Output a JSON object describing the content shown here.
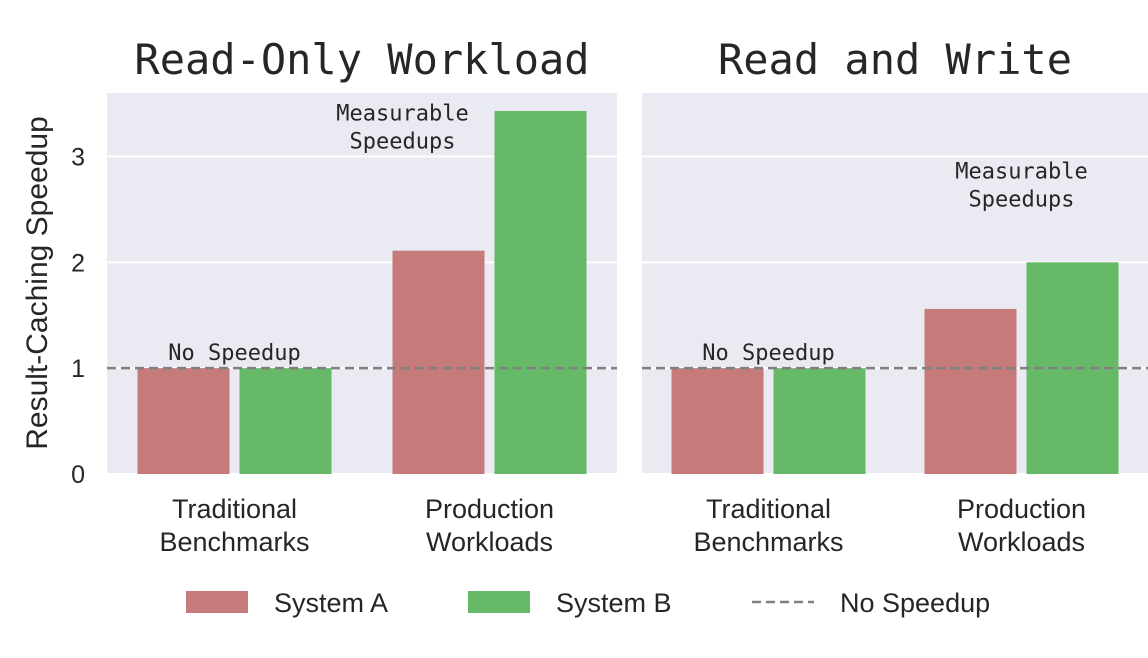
{
  "chart_data": [
    {
      "type": "bar",
      "title": "Read-Only Workload",
      "ylabel": "Result-Caching Speedup",
      "categories": [
        [
          "Traditional",
          "Benchmarks"
        ],
        [
          "Production",
          "Workloads"
        ]
      ],
      "series": [
        {
          "name": "System A",
          "values": [
            1.0,
            2.11
          ]
        },
        {
          "name": "System B",
          "values": [
            1.0,
            3.43
          ]
        }
      ],
      "yticks": [
        0,
        1,
        2,
        3
      ],
      "ylim": [
        0,
        3.6
      ],
      "reference_line": {
        "y": 1,
        "label": "No Speedup",
        "style": "dashed"
      },
      "annotations": [
        {
          "text": [
            "No Speedup"
          ],
          "category": 0,
          "y": 1.0
        },
        {
          "text": [
            "Measurable",
            "Speedups"
          ],
          "category": 1,
          "y": 3.0
        }
      ],
      "grid": true
    },
    {
      "type": "bar",
      "title": "Read and Write",
      "categories": [
        [
          "Traditional",
          "Benchmarks"
        ],
        [
          "Production",
          "Workloads"
        ]
      ],
      "series": [
        {
          "name": "System A",
          "values": [
            1.0,
            1.56
          ]
        },
        {
          "name": "System B",
          "values": [
            1.0,
            2.0
          ]
        }
      ],
      "yticks": [
        0,
        1,
        2,
        3
      ],
      "ylim": [
        0,
        3.6
      ],
      "reference_line": {
        "y": 1,
        "label": "No Speedup",
        "style": "dashed"
      },
      "annotations": [
        {
          "text": [
            "No Speedup"
          ],
          "category": 0,
          "y": 1.0
        },
        {
          "text": [
            "Measurable",
            "Speedups"
          ],
          "category": 1,
          "y": 2.45
        }
      ],
      "grid": true
    }
  ],
  "legend": {
    "placement": "bottom",
    "items": [
      {
        "label": "System A",
        "kind": "patch"
      },
      {
        "label": "System B",
        "kind": "patch"
      },
      {
        "label": "No Speedup",
        "kind": "dashed-line"
      }
    ]
  },
  "colors": {
    "System A": "#c47b79",
    "System B": "#66b966",
    "background": "#eaeaf2",
    "reference": "#808080"
  }
}
